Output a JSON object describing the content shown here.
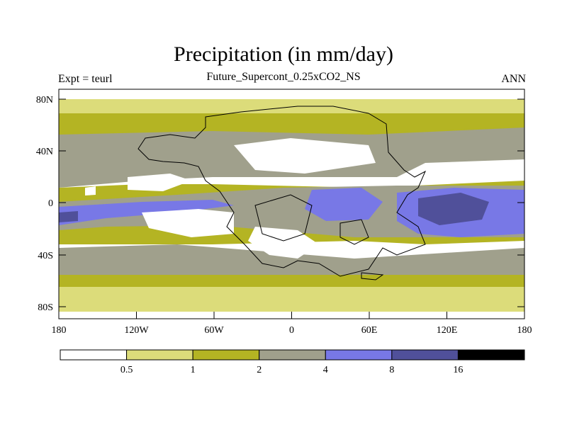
{
  "title": "Precipitation (in mm/day)",
  "subtitle": "Future_Supercont_0.25xCO2_NS",
  "left_string": "Expt = teurl",
  "right_string": "ANN",
  "map": {
    "projection": "cylindrical-equidistant",
    "lon_range": [
      -180,
      180
    ],
    "lat_range": [
      -90,
      90
    ],
    "y_ticks": [
      "80N",
      "40N",
      "0",
      "40S",
      "80S"
    ],
    "x_ticks": [
      "180",
      "120W",
      "60W",
      "0",
      "60E",
      "120E",
      "180"
    ],
    "fill_colors": [
      "#ffffff",
      "#dcdc7a",
      "#b4b423",
      "#a0a08c",
      "#7878e6",
      "#50509a",
      "#000000"
    ]
  },
  "colorbar": {
    "levels": [
      "0.5",
      "1",
      "2",
      "4",
      "8",
      "16"
    ],
    "colors": [
      "#ffffff",
      "#dcdc7a",
      "#b4b423",
      "#a0a08c",
      "#7878e6",
      "#50509a",
      "#000000"
    ]
  }
}
